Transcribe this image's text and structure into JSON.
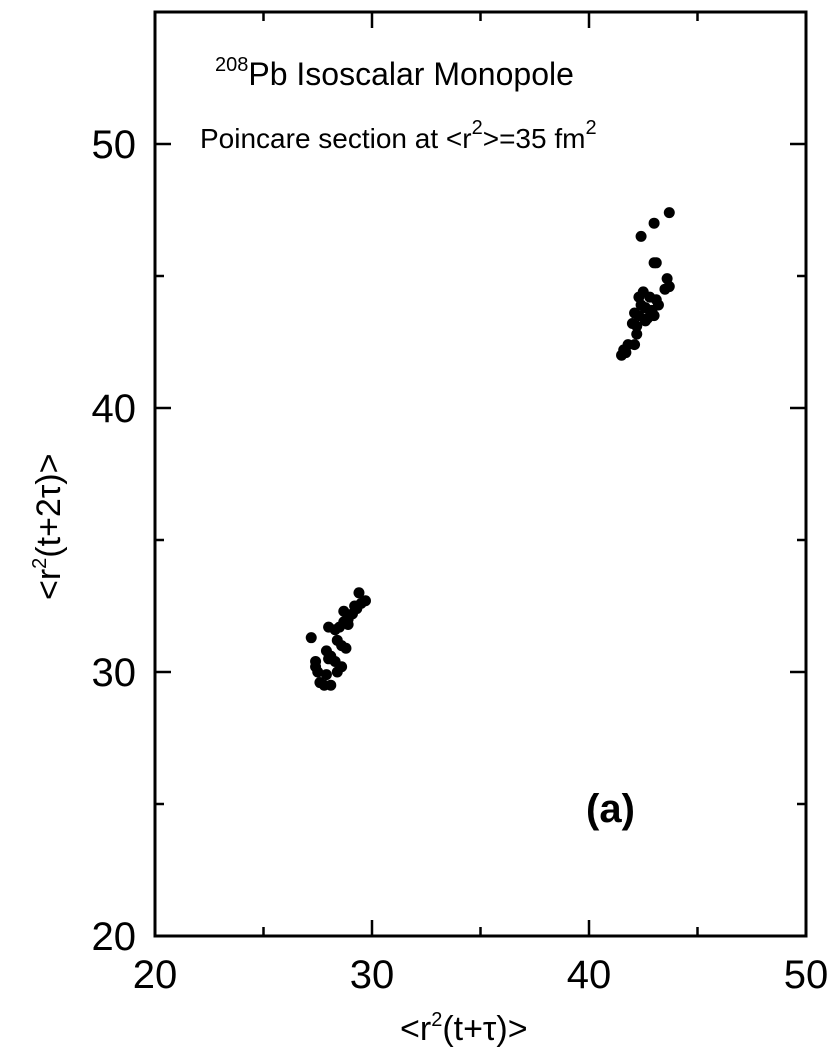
{
  "chart_data": {
    "type": "scatter",
    "title": {
      "sup": "208",
      "text": "Pb Isoscalar Monopole"
    },
    "subtitle": {
      "pre": "Poincare section at <r",
      "sup1": "2",
      "mid": ">=35 fm",
      "sup2": "2"
    },
    "xlabel": {
      "pre": "<r",
      "sup": "2",
      "post": "(t+τ)>"
    },
    "ylabel": {
      "pre": "<r",
      "sup": "2",
      "post": "(t+2τ)>"
    },
    "panel_label": "(a)",
    "xlim": [
      20,
      50
    ],
    "ylim": [
      20,
      55
    ],
    "x_ticks": [
      "20",
      "30",
      "40",
      "50"
    ],
    "y_ticks": [
      "20",
      "30",
      "40",
      "50"
    ],
    "grid": false,
    "color": "#000000",
    "points": [
      [
        27.2,
        31.3
      ],
      [
        27.4,
        30.2
      ],
      [
        27.5,
        30.0
      ],
      [
        27.6,
        29.6
      ],
      [
        27.8,
        29.5
      ],
      [
        27.9,
        29.9
      ],
      [
        28.1,
        29.5
      ],
      [
        27.9,
        30.8
      ],
      [
        28.1,
        30.6
      ],
      [
        28.3,
        30.4
      ],
      [
        28.4,
        30.0
      ],
      [
        28.0,
        31.7
      ],
      [
        28.3,
        31.6
      ],
      [
        28.5,
        31.7
      ],
      [
        28.6,
        31.0
      ],
      [
        28.8,
        30.9
      ],
      [
        28.4,
        31.2
      ],
      [
        28.7,
        31.9
      ],
      [
        28.9,
        32.0
      ],
      [
        28.7,
        32.3
      ],
      [
        29.1,
        32.2
      ],
      [
        29.3,
        32.4
      ],
      [
        29.5,
        32.6
      ],
      [
        29.4,
        33.0
      ],
      [
        29.7,
        32.7
      ],
      [
        29.2,
        32.5
      ],
      [
        27.4,
        30.4
      ],
      [
        28.9,
        31.8
      ],
      [
        28.0,
        30.5
      ],
      [
        28.6,
        30.2
      ],
      [
        41.5,
        42.0
      ],
      [
        41.6,
        42.2
      ],
      [
        41.8,
        42.4
      ],
      [
        42.1,
        42.4
      ],
      [
        42.0,
        43.2
      ],
      [
        42.2,
        43.1
      ],
      [
        42.1,
        43.6
      ],
      [
        42.3,
        43.5
      ],
      [
        42.4,
        43.9
      ],
      [
        42.3,
        44.2
      ],
      [
        42.5,
        44.4
      ],
      [
        42.6,
        43.8
      ],
      [
        42.8,
        44.2
      ],
      [
        42.9,
        43.7
      ],
      [
        43.0,
        43.5
      ],
      [
        43.2,
        43.9
      ],
      [
        43.1,
        44.1
      ],
      [
        42.7,
        43.4
      ],
      [
        43.0,
        45.5
      ],
      [
        43.1,
        45.5
      ],
      [
        42.4,
        46.5
      ],
      [
        43.0,
        47.0
      ],
      [
        43.7,
        47.4
      ],
      [
        43.6,
        44.9
      ],
      [
        43.5,
        44.5
      ],
      [
        43.7,
        44.6
      ],
      [
        42.2,
        42.8
      ],
      [
        42.9,
        43.6
      ],
      [
        41.7,
        42.1
      ],
      [
        42.6,
        43.3
      ]
    ]
  }
}
